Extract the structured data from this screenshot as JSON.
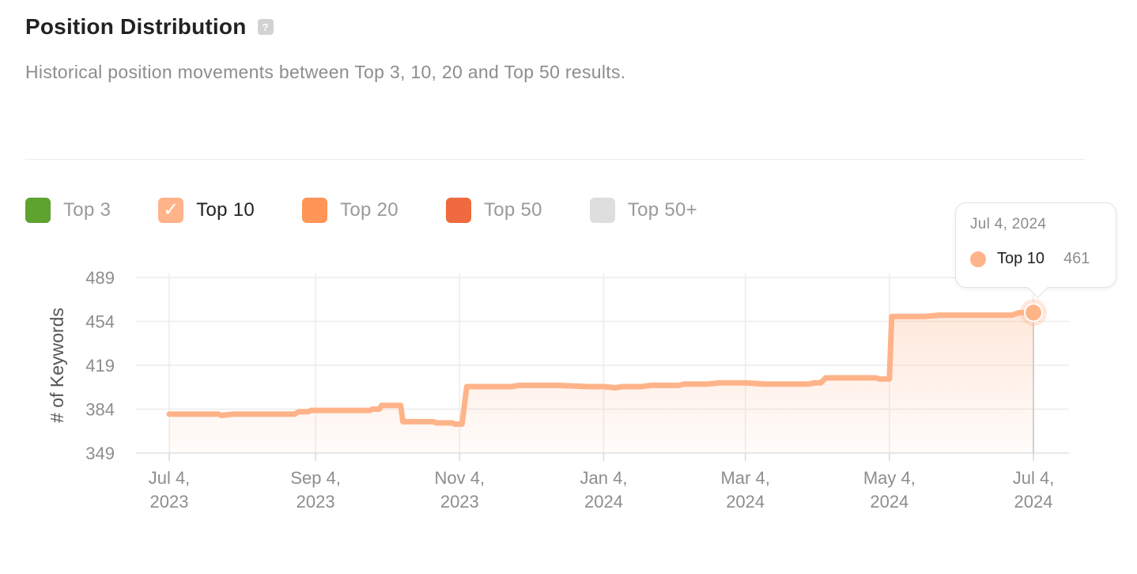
{
  "header": {
    "title": "Position Distribution",
    "help_icon_text": "?",
    "subtitle": "Historical position movements between Top 3, 10, 20 and Top 50 results."
  },
  "legend": [
    {
      "label": "Top 3",
      "color": "#5ea22f",
      "checked": false
    },
    {
      "label": "Top 10",
      "color": "#ffb389",
      "checked": true
    },
    {
      "label": "Top 20",
      "color": "#ff9556",
      "checked": false
    },
    {
      "label": "Top 50",
      "color": "#ef6a3e",
      "checked": false
    },
    {
      "label": "Top 50+",
      "color": "#dedede",
      "checked": false
    }
  ],
  "tooltip": {
    "date": "Jul 4, 2024",
    "series": "Top 10",
    "value": "461",
    "color": "#ffb389"
  },
  "chart_data": {
    "type": "area",
    "ylabel": "# of Keywords",
    "xlabel": "",
    "ylim": [
      349,
      489
    ],
    "y_ticks": [
      349,
      384,
      419,
      454,
      489
    ],
    "x_ticks": [
      {
        "date": "2023-07-04",
        "label": [
          "Jul 4,",
          "2023"
        ]
      },
      {
        "date": "2023-09-04",
        "label": [
          "Sep 4,",
          "2023"
        ]
      },
      {
        "date": "2023-11-04",
        "label": [
          "Nov 4,",
          "2023"
        ]
      },
      {
        "date": "2024-01-04",
        "label": [
          "Jan 4,",
          "2024"
        ]
      },
      {
        "date": "2024-03-04",
        "label": [
          "Mar 4,",
          "2024"
        ]
      },
      {
        "date": "2024-05-04",
        "label": [
          "May 4,",
          "2024"
        ]
      },
      {
        "date": "2024-07-04",
        "label": [
          "Jul 4,",
          "2024"
        ]
      }
    ],
    "grid": true,
    "legend_position": "top-left",
    "series": [
      {
        "name": "Top 10",
        "color": "#ffb389",
        "points": [
          [
            "2023-07-04",
            380
          ],
          [
            "2023-07-25",
            380
          ],
          [
            "2023-07-26",
            379
          ],
          [
            "2023-07-31",
            380
          ],
          [
            "2023-08-26",
            380
          ],
          [
            "2023-08-28",
            382
          ],
          [
            "2023-09-01",
            382
          ],
          [
            "2023-09-02",
            383
          ],
          [
            "2023-09-27",
            383
          ],
          [
            "2023-09-28",
            384
          ],
          [
            "2023-10-01",
            384
          ],
          [
            "2023-10-02",
            387
          ],
          [
            "2023-10-10",
            387
          ],
          [
            "2023-10-11",
            374
          ],
          [
            "2023-10-24",
            374
          ],
          [
            "2023-10-25",
            373
          ],
          [
            "2023-11-01",
            373
          ],
          [
            "2023-11-02",
            372
          ],
          [
            "2023-11-05",
            372
          ],
          [
            "2023-11-07",
            402
          ],
          [
            "2023-11-12",
            402
          ],
          [
            "2023-11-26",
            402
          ],
          [
            "2023-11-29",
            403
          ],
          [
            "2023-12-01",
            403
          ],
          [
            "2023-12-15",
            403
          ],
          [
            "2023-12-29",
            402
          ],
          [
            "2024-01-04",
            402
          ],
          [
            "2024-01-09",
            401
          ],
          [
            "2024-01-12",
            402
          ],
          [
            "2024-01-20",
            402
          ],
          [
            "2024-01-24",
            403
          ],
          [
            "2024-02-05",
            403
          ],
          [
            "2024-02-07",
            404
          ],
          [
            "2024-02-17",
            404
          ],
          [
            "2024-02-22",
            405
          ],
          [
            "2024-02-28",
            405
          ],
          [
            "2024-03-04",
            405
          ],
          [
            "2024-03-12",
            404
          ],
          [
            "2024-03-20",
            404
          ],
          [
            "2024-03-31",
            404
          ],
          [
            "2024-04-02",
            405
          ],
          [
            "2024-04-05",
            405
          ],
          [
            "2024-04-07",
            409
          ],
          [
            "2024-04-26",
            409
          ],
          [
            "2024-04-28",
            409
          ],
          [
            "2024-04-30",
            408
          ],
          [
            "2024-05-04",
            408
          ],
          [
            "2024-05-05",
            458
          ],
          [
            "2024-05-19",
            458
          ],
          [
            "2024-05-25",
            459
          ],
          [
            "2024-06-05",
            459
          ],
          [
            "2024-06-25",
            459
          ],
          [
            "2024-06-28",
            461
          ],
          [
            "2024-07-04",
            461
          ]
        ]
      }
    ]
  }
}
